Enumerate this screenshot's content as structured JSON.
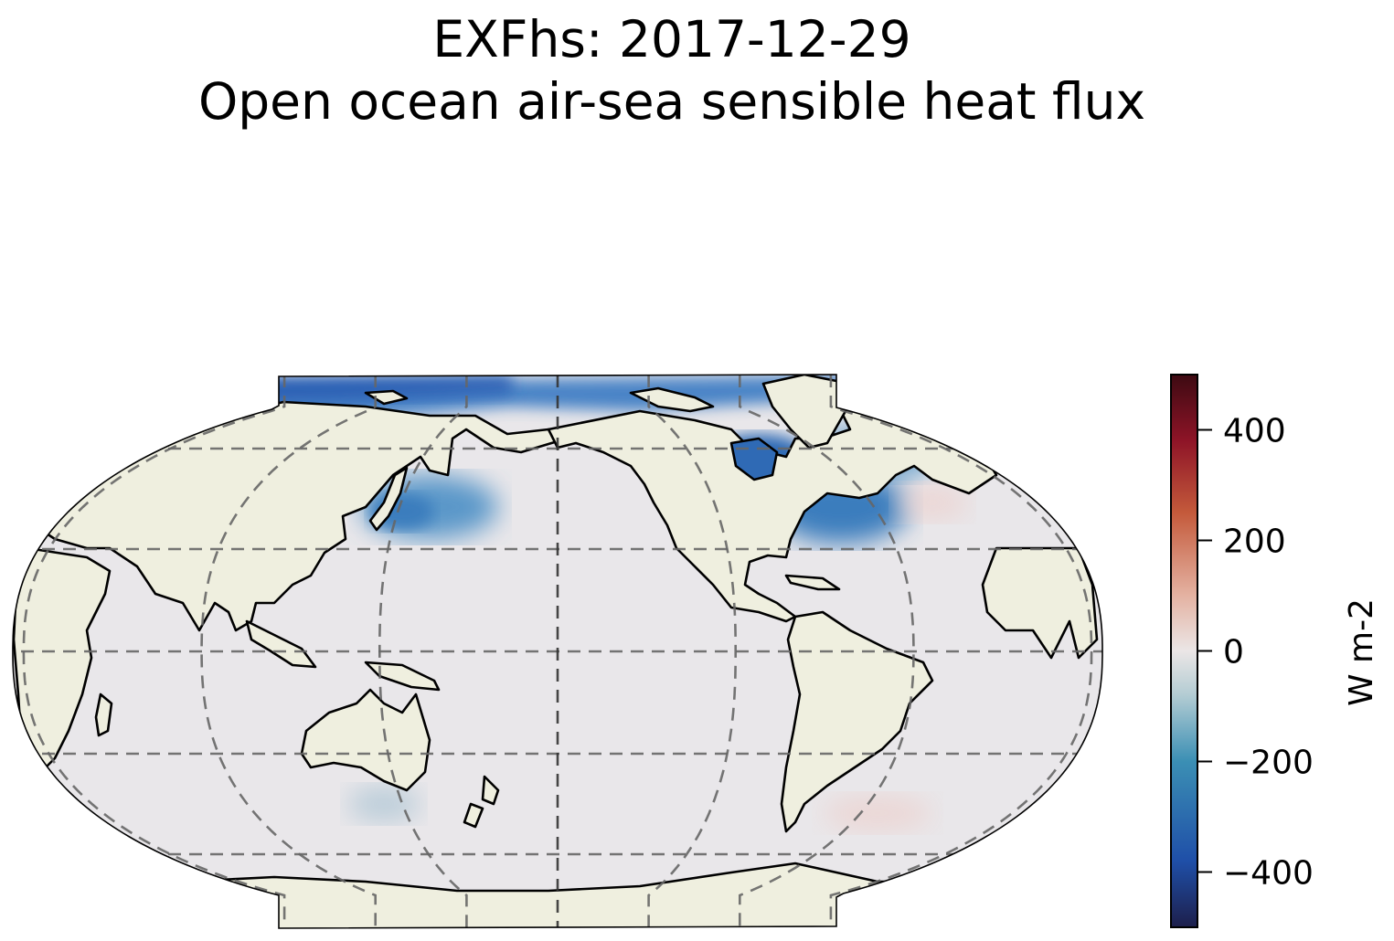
{
  "title": "EXFhs: 2017-12-29",
  "subtitle": "Open ocean air-sea sensible heat flux",
  "colorbar": {
    "label": "W m-2",
    "ticks": [
      "400",
      "200",
      "0",
      "−200",
      "−400"
    ],
    "tick_values": [
      400,
      200,
      0,
      -200,
      -400
    ],
    "range": [
      -500,
      500
    ],
    "colors": [
      "#1d1f4b",
      "#1f4fa8",
      "#3b8fb4",
      "#b3ccd3",
      "#ebe6e6",
      "#e4b2a2",
      "#c45a3b",
      "#8e1427",
      "#3d0a12"
    ]
  },
  "map": {
    "projection": "Robinson",
    "central_longitude": 180,
    "land_color": "#efefdf",
    "ocean_color": "#e9e7ea"
  }
}
